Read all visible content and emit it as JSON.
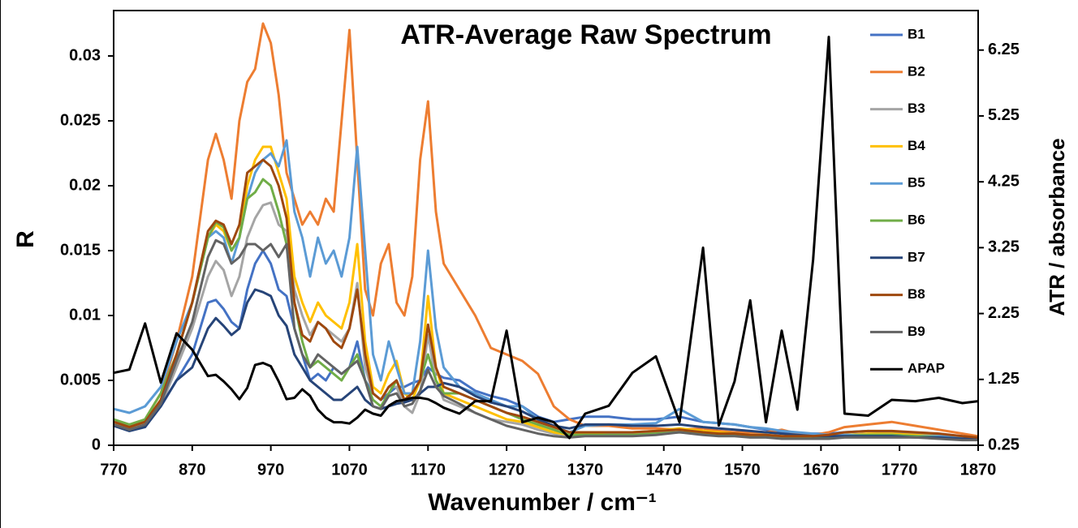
{
  "chart_data": {
    "type": "line",
    "title": "ATR-Average Raw Spectrum",
    "xlabel": "Wavenumber / cm⁻¹",
    "ylabel": "R",
    "y2label": "ATR / absorbance",
    "x": [
      770,
      790,
      810,
      830,
      850,
      870,
      890,
      900,
      910,
      920,
      930,
      940,
      950,
      960,
      970,
      980,
      990,
      1000,
      1010,
      1020,
      1030,
      1040,
      1050,
      1060,
      1070,
      1080,
      1090,
      1100,
      1110,
      1120,
      1130,
      1140,
      1150,
      1160,
      1170,
      1180,
      1190,
      1210,
      1230,
      1250,
      1270,
      1290,
      1310,
      1330,
      1350,
      1370,
      1400,
      1430,
      1460,
      1490,
      1520,
      1540,
      1560,
      1580,
      1600,
      1620,
      1640,
      1660,
      1680,
      1700,
      1730,
      1760,
      1790,
      1820,
      1850,
      1870
    ],
    "xlim": [
      770,
      1870
    ],
    "xticks": [
      770,
      870,
      970,
      1070,
      1170,
      1270,
      1370,
      1470,
      1570,
      1670,
      1770,
      1870
    ],
    "ylim": [
      0,
      0.0335
    ],
    "yticks": [
      0,
      0.005,
      0.01,
      0.015,
      0.02,
      0.025,
      0.03
    ],
    "y2lim": [
      0.25,
      6.85
    ],
    "y2ticks": [
      0.25,
      1.25,
      2.25,
      3.25,
      4.25,
      5.25,
      6.25
    ],
    "legend": "upper right",
    "series": [
      {
        "name": "B1",
        "color": "#4472c4",
        "values": [
          0.0018,
          0.0016,
          0.0018,
          0.003,
          0.005,
          0.007,
          0.011,
          0.0112,
          0.0105,
          0.0095,
          0.009,
          0.012,
          0.014,
          0.015,
          0.014,
          0.012,
          0.0115,
          0.009,
          0.007,
          0.005,
          0.0055,
          0.005,
          0.006,
          0.0055,
          0.006,
          0.008,
          0.005,
          0.004,
          0.0035,
          0.004,
          0.0045,
          0.0045,
          0.0048,
          0.005,
          0.006,
          0.0055,
          0.0052,
          0.005,
          0.0042,
          0.0038,
          0.0035,
          0.003,
          0.0022,
          0.0018,
          0.002,
          0.0022,
          0.0022,
          0.002,
          0.002,
          0.0022,
          0.0018,
          0.0017,
          0.0016,
          0.0014,
          0.0012,
          0.001,
          0.0009,
          0.0009,
          0.0009,
          0.001,
          0.0011,
          0.001,
          0.0009,
          0.0008,
          0.0007,
          0.0006
        ]
      },
      {
        "name": "B2",
        "color": "#ed7d31",
        "values": [
          0.0015,
          0.0013,
          0.002,
          0.004,
          0.008,
          0.013,
          0.022,
          0.024,
          0.022,
          0.019,
          0.025,
          0.028,
          0.029,
          0.0325,
          0.031,
          0.027,
          0.021,
          0.019,
          0.017,
          0.018,
          0.017,
          0.019,
          0.018,
          0.025,
          0.032,
          0.022,
          0.012,
          0.01,
          0.014,
          0.0155,
          0.011,
          0.01,
          0.013,
          0.022,
          0.0265,
          0.018,
          0.014,
          0.012,
          0.01,
          0.0075,
          0.007,
          0.0065,
          0.0055,
          0.003,
          0.002,
          0.0015,
          0.0015,
          0.0013,
          0.0013,
          0.0012,
          0.0013,
          0.0011,
          0.001,
          0.001,
          0.001,
          0.0012,
          0.0009,
          0.0008,
          0.001,
          0.0014,
          0.0016,
          0.0018,
          0.0015,
          0.0012,
          0.0009,
          0.0007
        ]
      },
      {
        "name": "B3",
        "color": "#a5a5a5",
        "values": [
          0.0015,
          0.0012,
          0.0015,
          0.003,
          0.006,
          0.009,
          0.013,
          0.0142,
          0.0135,
          0.0115,
          0.013,
          0.016,
          0.0175,
          0.0185,
          0.0187,
          0.017,
          0.0165,
          0.012,
          0.01,
          0.0085,
          0.0095,
          0.009,
          0.0085,
          0.008,
          0.009,
          0.0125,
          0.006,
          0.004,
          0.0035,
          0.0045,
          0.0045,
          0.003,
          0.0025,
          0.004,
          0.0085,
          0.005,
          0.0035,
          0.003,
          0.0025,
          0.002,
          0.0018,
          0.0016,
          0.0012,
          0.0009,
          0.0008,
          0.0009,
          0.0009,
          0.0009,
          0.001,
          0.0012,
          0.001,
          0.0009,
          0.0008,
          0.0008,
          0.0007,
          0.0006,
          0.0006,
          0.0006,
          0.0006,
          0.0007,
          0.0008,
          0.0008,
          0.0007,
          0.0006,
          0.0005,
          0.0005
        ]
      },
      {
        "name": "B4",
        "color": "#ffc000",
        "values": [
          0.0018,
          0.0014,
          0.0018,
          0.0035,
          0.007,
          0.011,
          0.016,
          0.017,
          0.0165,
          0.015,
          0.016,
          0.02,
          0.022,
          0.023,
          0.023,
          0.021,
          0.019,
          0.013,
          0.011,
          0.0095,
          0.011,
          0.01,
          0.0095,
          0.009,
          0.011,
          0.0155,
          0.008,
          0.0045,
          0.004,
          0.0055,
          0.0065,
          0.004,
          0.0035,
          0.005,
          0.0115,
          0.006,
          0.004,
          0.0035,
          0.003,
          0.0025,
          0.002,
          0.0018,
          0.0014,
          0.001,
          0.0008,
          0.0009,
          0.001,
          0.001,
          0.0011,
          0.0013,
          0.0011,
          0.001,
          0.0009,
          0.0008,
          0.0008,
          0.0007,
          0.0006,
          0.0007,
          0.0007,
          0.0008,
          0.0009,
          0.0009,
          0.0008,
          0.0007,
          0.0006,
          0.0005
        ]
      },
      {
        "name": "B5",
        "color": "#5b9bd5",
        "values": [
          0.0028,
          0.0025,
          0.003,
          0.0045,
          0.008,
          0.011,
          0.016,
          0.0165,
          0.016,
          0.014,
          0.016,
          0.019,
          0.021,
          0.022,
          0.0225,
          0.0215,
          0.0235,
          0.018,
          0.016,
          0.013,
          0.016,
          0.014,
          0.015,
          0.013,
          0.016,
          0.023,
          0.015,
          0.007,
          0.005,
          0.008,
          0.006,
          0.004,
          0.004,
          0.008,
          0.015,
          0.009,
          0.006,
          0.0045,
          0.004,
          0.0035,
          0.003,
          0.003,
          0.002,
          0.0015,
          0.001,
          0.0015,
          0.0016,
          0.0016,
          0.0017,
          0.0028,
          0.0018,
          0.0017,
          0.0016,
          0.0014,
          0.0013,
          0.0011,
          0.001,
          0.0009,
          0.0008,
          0.0008,
          0.0008,
          0.0008,
          0.0007,
          0.0007,
          0.0006,
          0.0006
        ]
      },
      {
        "name": "B6",
        "color": "#70ad47",
        "values": [
          0.002,
          0.0016,
          0.002,
          0.004,
          0.007,
          0.011,
          0.016,
          0.0172,
          0.0168,
          0.015,
          0.016,
          0.019,
          0.0195,
          0.0205,
          0.02,
          0.018,
          0.0155,
          0.011,
          0.008,
          0.006,
          0.0065,
          0.006,
          0.0055,
          0.005,
          0.006,
          0.007,
          0.005,
          0.0035,
          0.003,
          0.004,
          0.005,
          0.0035,
          0.004,
          0.005,
          0.007,
          0.005,
          0.004,
          0.004,
          0.0035,
          0.003,
          0.0025,
          0.002,
          0.0016,
          0.0012,
          0.0008,
          0.0008,
          0.0008,
          0.0008,
          0.0009,
          0.001,
          0.0009,
          0.0008,
          0.0008,
          0.0007,
          0.0007,
          0.0006,
          0.0006,
          0.0006,
          0.0006,
          0.0007,
          0.0008,
          0.0008,
          0.0007,
          0.0006,
          0.0005,
          0.0005
        ]
      },
      {
        "name": "B7",
        "color": "#264478",
        "values": [
          0.0015,
          0.0011,
          0.0014,
          0.003,
          0.005,
          0.006,
          0.009,
          0.0098,
          0.0092,
          0.0085,
          0.009,
          0.011,
          0.012,
          0.0118,
          0.0115,
          0.01,
          0.0092,
          0.007,
          0.006,
          0.005,
          0.0045,
          0.004,
          0.0035,
          0.0035,
          0.004,
          0.0045,
          0.0035,
          0.003,
          0.0028,
          0.003,
          0.0032,
          0.0033,
          0.0035,
          0.004,
          0.0045,
          0.0045,
          0.0048,
          0.0045,
          0.0038,
          0.0033,
          0.003,
          0.0026,
          0.002,
          0.0015,
          0.0013,
          0.0016,
          0.0016,
          0.0015,
          0.0015,
          0.0016,
          0.0014,
          0.0013,
          0.0012,
          0.0011,
          0.001,
          0.0009,
          0.0008,
          0.0007,
          0.0007,
          0.0007,
          0.0007,
          0.0007,
          0.0006,
          0.0006,
          0.0005,
          0.0005
        ]
      },
      {
        "name": "B8",
        "color": "#9e480e",
        "values": [
          0.0018,
          0.0014,
          0.0018,
          0.0035,
          0.007,
          0.011,
          0.0165,
          0.0173,
          0.017,
          0.0155,
          0.017,
          0.021,
          0.0215,
          0.022,
          0.0215,
          0.02,
          0.0175,
          0.011,
          0.0085,
          0.008,
          0.0095,
          0.009,
          0.008,
          0.0075,
          0.009,
          0.012,
          0.007,
          0.004,
          0.0035,
          0.0045,
          0.005,
          0.0035,
          0.004,
          0.005,
          0.0093,
          0.006,
          0.0045,
          0.004,
          0.0035,
          0.003,
          0.0025,
          0.0022,
          0.0018,
          0.0014,
          0.001,
          0.001,
          0.001,
          0.001,
          0.0011,
          0.0012,
          0.001,
          0.0009,
          0.0009,
          0.0008,
          0.0008,
          0.0007,
          0.0007,
          0.0007,
          0.0008,
          0.001,
          0.0011,
          0.0011,
          0.001,
          0.0009,
          0.0007,
          0.0006
        ]
      },
      {
        "name": "B9",
        "color": "#636363",
        "values": [
          0.0016,
          0.0012,
          0.0016,
          0.0032,
          0.0065,
          0.0095,
          0.0145,
          0.0158,
          0.0155,
          0.014,
          0.0145,
          0.0155,
          0.0155,
          0.015,
          0.0155,
          0.0145,
          0.0155,
          0.009,
          0.007,
          0.006,
          0.007,
          0.0065,
          0.006,
          0.0055,
          0.006,
          0.0065,
          0.005,
          0.003,
          0.0028,
          0.0038,
          0.004,
          0.003,
          0.0032,
          0.0042,
          0.0058,
          0.0045,
          0.0038,
          0.0032,
          0.0025,
          0.002,
          0.0015,
          0.0012,
          0.0009,
          0.0007,
          0.0006,
          0.0007,
          0.0007,
          0.0007,
          0.0008,
          0.001,
          0.0008,
          0.0007,
          0.0007,
          0.0006,
          0.0006,
          0.0005,
          0.0005,
          0.0005,
          0.0005,
          0.0006,
          0.0006,
          0.0006,
          0.0006,
          0.0005,
          0.0004,
          0.0004
        ]
      },
      {
        "name": "APAP",
        "color": "#000000",
        "axis": "y2",
        "values": [
          1.35,
          1.4,
          2.1,
          1.2,
          1.95,
          1.7,
          1.3,
          1.32,
          1.22,
          1.1,
          0.95,
          1.12,
          1.47,
          1.5,
          1.45,
          1.22,
          0.95,
          0.97,
          1.1,
          1.0,
          0.79,
          0.67,
          0.6,
          0.6,
          0.58,
          0.67,
          0.79,
          0.73,
          0.7,
          0.85,
          0.92,
          0.94,
          0.97,
          0.97,
          0.95,
          0.89,
          0.82,
          0.73,
          0.92,
          0.92,
          1.99,
          0.6,
          0.67,
          0.6,
          0.36,
          0.73,
          0.85,
          1.35,
          1.6,
          0.6,
          3.25,
          0.55,
          1.22,
          2.45,
          0.6,
          1.99,
          0.79,
          3.07,
          6.45,
          0.73,
          0.7,
          0.94,
          0.92,
          0.97,
          0.89,
          0.92
        ]
      }
    ]
  }
}
